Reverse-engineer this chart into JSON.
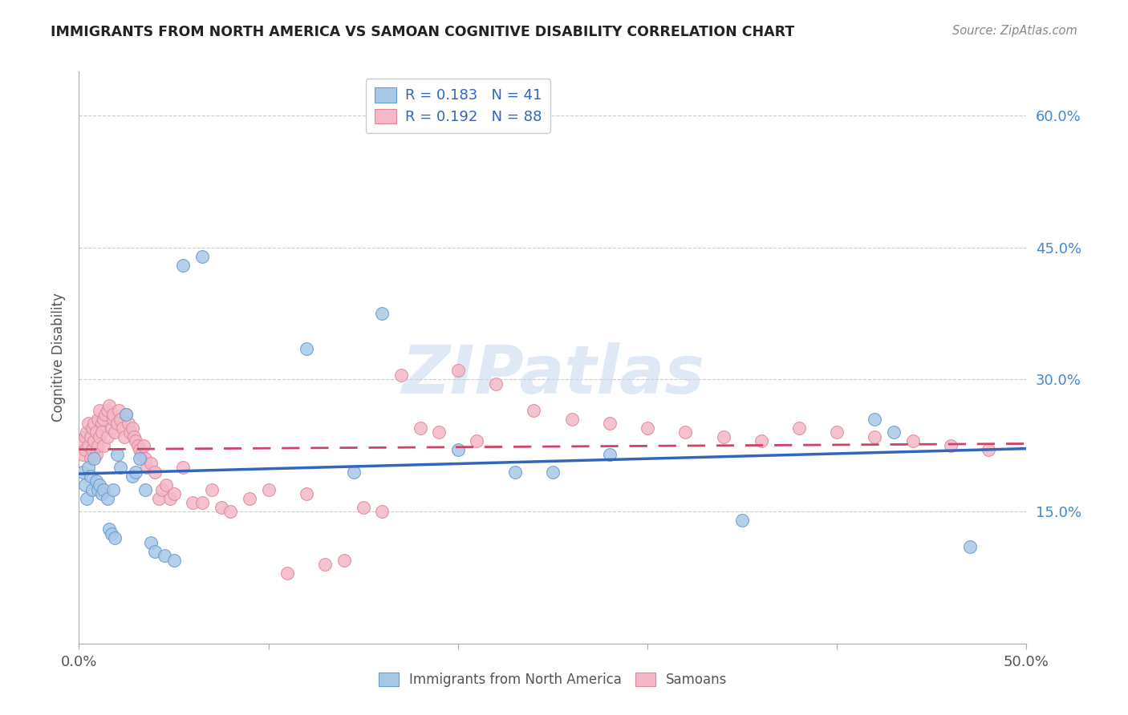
{
  "title": "IMMIGRANTS FROM NORTH AMERICA VS SAMOAN COGNITIVE DISABILITY CORRELATION CHART",
  "source": "Source: ZipAtlas.com",
  "ylabel": "Cognitive Disability",
  "xlim": [
    0.0,
    0.5
  ],
  "ylim": [
    0.0,
    0.65
  ],
  "yticks": [
    0.15,
    0.3,
    0.45,
    0.6
  ],
  "ytick_labels": [
    "15.0%",
    "30.0%",
    "45.0%",
    "60.0%"
  ],
  "xtick_labels": [
    "0.0%",
    "",
    "",
    "",
    "",
    "50.0%"
  ],
  "blue_R": 0.183,
  "blue_N": 41,
  "pink_R": 0.192,
  "pink_N": 88,
  "blue_color": "#a8c8e8",
  "pink_color": "#f4b8c8",
  "blue_edge_color": "#6699cc",
  "pink_edge_color": "#dd8899",
  "blue_line_color": "#3366bb",
  "pink_line_color": "#cc4466",
  "watermark": "ZIPatlas",
  "legend_label_blue": "Immigrants from North America",
  "legend_label_pink": "Samoans",
  "blue_x": [
    0.002,
    0.003,
    0.004,
    0.005,
    0.006,
    0.007,
    0.008,
    0.009,
    0.01,
    0.011,
    0.012,
    0.013,
    0.015,
    0.016,
    0.017,
    0.018,
    0.019,
    0.02,
    0.022,
    0.025,
    0.028,
    0.03,
    0.032,
    0.035,
    0.038,
    0.04,
    0.045,
    0.05,
    0.055,
    0.065,
    0.12,
    0.145,
    0.16,
    0.2,
    0.23,
    0.25,
    0.28,
    0.35,
    0.42,
    0.43,
    0.47
  ],
  "blue_y": [
    0.195,
    0.18,
    0.165,
    0.2,
    0.19,
    0.175,
    0.21,
    0.185,
    0.175,
    0.18,
    0.17,
    0.175,
    0.165,
    0.13,
    0.125,
    0.175,
    0.12,
    0.215,
    0.2,
    0.26,
    0.19,
    0.195,
    0.21,
    0.175,
    0.115,
    0.105,
    0.1,
    0.095,
    0.43,
    0.44,
    0.335,
    0.195,
    0.375,
    0.22,
    0.195,
    0.195,
    0.215,
    0.14,
    0.255,
    0.24,
    0.11
  ],
  "pink_x": [
    0.001,
    0.002,
    0.003,
    0.003,
    0.004,
    0.005,
    0.005,
    0.006,
    0.006,
    0.007,
    0.007,
    0.008,
    0.008,
    0.009,
    0.009,
    0.01,
    0.01,
    0.011,
    0.011,
    0.012,
    0.012,
    0.013,
    0.013,
    0.014,
    0.015,
    0.015,
    0.016,
    0.017,
    0.018,
    0.018,
    0.019,
    0.02,
    0.021,
    0.022,
    0.023,
    0.024,
    0.025,
    0.026,
    0.027,
    0.028,
    0.029,
    0.03,
    0.031,
    0.032,
    0.033,
    0.034,
    0.035,
    0.036,
    0.038,
    0.04,
    0.042,
    0.044,
    0.046,
    0.048,
    0.05,
    0.055,
    0.06,
    0.065,
    0.07,
    0.075,
    0.08,
    0.09,
    0.1,
    0.11,
    0.12,
    0.13,
    0.14,
    0.15,
    0.16,
    0.17,
    0.18,
    0.19,
    0.2,
    0.21,
    0.22,
    0.24,
    0.26,
    0.28,
    0.3,
    0.32,
    0.34,
    0.36,
    0.38,
    0.4,
    0.42,
    0.44,
    0.46,
    0.48
  ],
  "pink_y": [
    0.23,
    0.215,
    0.235,
    0.22,
    0.24,
    0.225,
    0.25,
    0.235,
    0.21,
    0.245,
    0.22,
    0.25,
    0.23,
    0.24,
    0.215,
    0.255,
    0.225,
    0.265,
    0.235,
    0.25,
    0.24,
    0.255,
    0.225,
    0.26,
    0.265,
    0.235,
    0.27,
    0.245,
    0.255,
    0.26,
    0.24,
    0.25,
    0.265,
    0.255,
    0.245,
    0.235,
    0.26,
    0.25,
    0.24,
    0.245,
    0.235,
    0.23,
    0.225,
    0.22,
    0.215,
    0.225,
    0.21,
    0.2,
    0.205,
    0.195,
    0.165,
    0.175,
    0.18,
    0.165,
    0.17,
    0.2,
    0.16,
    0.16,
    0.175,
    0.155,
    0.15,
    0.165,
    0.175,
    0.08,
    0.17,
    0.09,
    0.095,
    0.155,
    0.15,
    0.305,
    0.245,
    0.24,
    0.31,
    0.23,
    0.295,
    0.265,
    0.255,
    0.25,
    0.245,
    0.24,
    0.235,
    0.23,
    0.245,
    0.24,
    0.235,
    0.23,
    0.225,
    0.22
  ]
}
